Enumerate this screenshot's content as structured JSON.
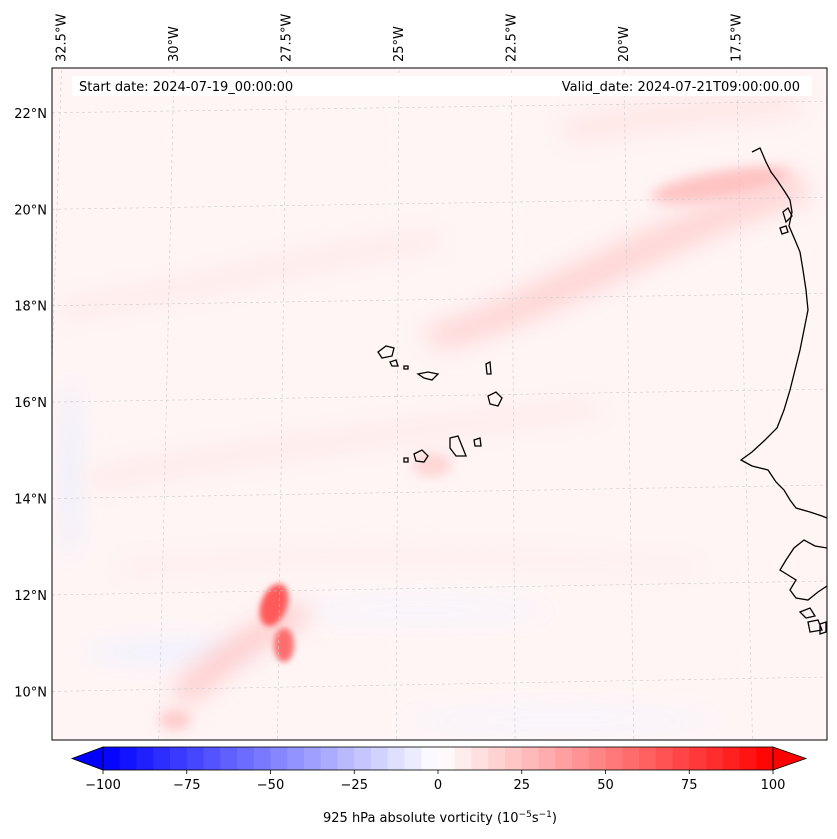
{
  "header": {
    "start_date": "Start date: 2024-07-19_00:00:00",
    "valid_date": "Valid_date: 2024-07-21T09:00:00.00"
  },
  "map": {
    "lon_range": [
      -32.5,
      -15.5
    ],
    "lat_range": [
      8.9,
      22.8
    ],
    "gridlines": true,
    "lon_labels": [
      "32.5°W",
      "30°W",
      "27.5°W",
      "25°W",
      "22.5°W",
      "20°W",
      "17.5°W"
    ],
    "lon_values": [
      -32.5,
      -30,
      -27.5,
      -25,
      -22.5,
      -20,
      -17.5
    ],
    "lat_labels": [
      "22°N",
      "20°N",
      "18°N",
      "16°N",
      "14°N",
      "12°N",
      "10°N"
    ],
    "lat_values": [
      22,
      20,
      18,
      16,
      14,
      12,
      10
    ],
    "features": {
      "vorticity_max_1": {
        "lon": -27.7,
        "lat": 11.7,
        "value": 60
      },
      "vorticity_max_2": {
        "lon": -27.4,
        "lat": 10.8,
        "value": 50
      },
      "band_northeast": {
        "value": 18
      },
      "islands": "Cape Verde",
      "coast": "West Africa (Senegal / Guinea-Bissau)"
    }
  },
  "colorbar": {
    "label": "925 hPa absolute vorticity (10",
    "label_exp1": "−5",
    "label_mid": "s",
    "label_exp2": "−1",
    "label_end": ")",
    "min": -100,
    "max": 100,
    "ticks": [
      "−100",
      "−75",
      "−50",
      "−25",
      "0",
      "25",
      "50",
      "75",
      "100"
    ],
    "tick_values": [
      -100,
      -75,
      -50,
      -25,
      0,
      25,
      50,
      75,
      100
    ],
    "colormap": "bwr",
    "color_min": "#0000ff",
    "color_mid": "#ffffff",
    "color_max": "#ff0000"
  }
}
